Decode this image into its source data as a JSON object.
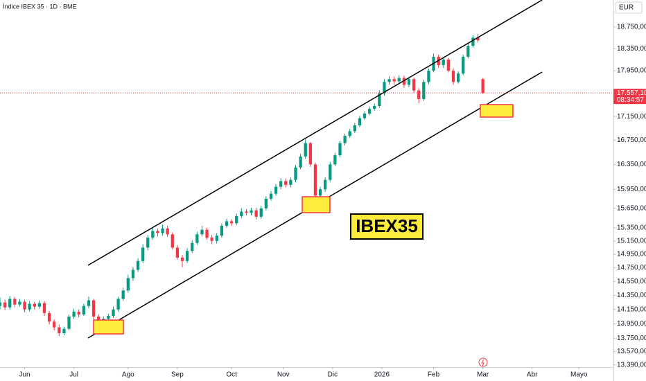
{
  "chart_data": {
    "type": "candlestick",
    "title": "Índice IBEX 35 · 1D · BME",
    "currency": "EUR",
    "annotation": "IBEX35",
    "log_scale": true,
    "grid": false,
    "up_color": "#089981",
    "down_color": "#f23645",
    "x": [
      0,
      2,
      4,
      6,
      8,
      10,
      12,
      14,
      16,
      18,
      20,
      22,
      24,
      26,
      28,
      30,
      32,
      34,
      36,
      38,
      40,
      42,
      44,
      46,
      48,
      50,
      52,
      54,
      56,
      58,
      60,
      62,
      64,
      66,
      68,
      70,
      72,
      74,
      76,
      78,
      80,
      82,
      84,
      86,
      88,
      90,
      92,
      94,
      96,
      98,
      100,
      102,
      104,
      106,
      108,
      110,
      112,
      114,
      116,
      118,
      120,
      122,
      124,
      126,
      128,
      130,
      132,
      134,
      136,
      138,
      140,
      142,
      144,
      146,
      148,
      150,
      152,
      154,
      156,
      158,
      160,
      162,
      164,
      166,
      168,
      170,
      172,
      174,
      176,
      178,
      180,
      182,
      184,
      186,
      188,
      190,
      192,
      194,
      196
    ],
    "open": [
      14200,
      14250,
      14180,
      14300,
      14220,
      14260,
      14150,
      14230,
      14190,
      14240,
      14100,
      13980,
      13900,
      13820,
      13880,
      14050,
      14120,
      14080,
      14200,
      14280,
      14050,
      13960,
      14020,
      14060,
      14150,
      14300,
      14420,
      14600,
      14720,
      14850,
      15050,
      15200,
      15300,
      15270,
      15340,
      15250,
      15050,
      14900,
      14850,
      15000,
      15120,
      15250,
      15320,
      15200,
      15150,
      15230,
      15380,
      15450,
      15420,
      15530,
      15600,
      15580,
      15620,
      15520,
      15650,
      15800,
      15880,
      15990,
      16080,
      16020,
      16100,
      16300,
      16480,
      16700,
      16350,
      15850,
      15950,
      16100,
      16350,
      16500,
      16700,
      16820,
      16900,
      17000,
      17120,
      17200,
      17280,
      17330,
      17550,
      17750,
      17800,
      17760,
      17820,
      17700,
      17800,
      17600,
      17450,
      17750,
      17950,
      18200,
      18050,
      18150,
      17950,
      17750,
      17900,
      18200,
      18400,
      18550,
      17800
    ],
    "high": [
      14320,
      14290,
      14340,
      14330,
      14300,
      14290,
      14270,
      14260,
      14280,
      14270,
      14130,
      14010,
      13940,
      13910,
      14080,
      14160,
      14150,
      14230,
      14330,
      14300,
      14080,
      14050,
      14090,
      14190,
      14330,
      14460,
      14650,
      14760,
      14890,
      15100,
      15240,
      15360,
      15340,
      15400,
      15380,
      15280,
      15090,
      14940,
      15040,
      15160,
      15290,
      15380,
      15350,
      15240,
      15270,
      15420,
      15490,
      15480,
      15570,
      15650,
      15640,
      15660,
      15660,
      15690,
      15840,
      15920,
      16030,
      16130,
      16120,
      16140,
      16340,
      16520,
      16760,
      16720,
      16380,
      15990,
      16140,
      16390,
      16540,
      16740,
      16860,
      16940,
      17040,
      17160,
      17240,
      17320,
      17370,
      17600,
      17800,
      17850,
      17850,
      17870,
      17860,
      17840,
      17830,
      17640,
      17790,
      17990,
      18260,
      18240,
      18190,
      18180,
      17990,
      17940,
      18240,
      18440,
      18600,
      18620,
      17820
    ],
    "low": [
      14150,
      14140,
      14150,
      14180,
      14190,
      14110,
      14120,
      14150,
      14160,
      14060,
      13940,
      13860,
      13780,
      13790,
      13860,
      14020,
      14040,
      14060,
      14170,
      14010,
      13920,
      13940,
      13990,
      14030,
      14120,
      14270,
      14390,
      14560,
      14690,
      14820,
      15010,
      15170,
      15220,
      15230,
      15210,
      15020,
      14870,
      14760,
      14820,
      14970,
      15090,
      15220,
      15170,
      15100,
      15110,
      15200,
      15350,
      15380,
      15390,
      15500,
      15540,
      15540,
      15480,
      15490,
      15620,
      15770,
      15850,
      15950,
      15980,
      15980,
      16060,
      16270,
      16440,
      16310,
      15780,
      15780,
      15910,
      16070,
      16320,
      16470,
      16660,
      16790,
      16870,
      16970,
      17090,
      17170,
      17250,
      17300,
      17510,
      17700,
      17700,
      17720,
      17650,
      17660,
      17560,
      17380,
      17420,
      17710,
      17920,
      18000,
      18000,
      17920,
      17700,
      17720,
      17870,
      18170,
      18370,
      18460,
      17540
    ],
    "close": [
      14250,
      14180,
      14300,
      14220,
      14260,
      14150,
      14230,
      14190,
      14240,
      14100,
      13980,
      13900,
      13820,
      13880,
      14050,
      14120,
      14080,
      14200,
      14280,
      14050,
      13960,
      14020,
      14060,
      14150,
      14300,
      14420,
      14600,
      14720,
      14850,
      15050,
      15200,
      15300,
      15270,
      15340,
      15250,
      15050,
      14900,
      14850,
      15000,
      15120,
      15250,
      15320,
      15200,
      15150,
      15230,
      15380,
      15450,
      15420,
      15530,
      15600,
      15580,
      15620,
      15520,
      15650,
      15800,
      15880,
      15990,
      16080,
      16020,
      16100,
      16300,
      16480,
      16700,
      16350,
      15850,
      15950,
      16100,
      16350,
      16500,
      16700,
      16820,
      16900,
      17000,
      17120,
      17200,
      17280,
      17330,
      17550,
      17750,
      17800,
      17760,
      17820,
      17700,
      17800,
      17600,
      17450,
      17750,
      17950,
      18200,
      18050,
      18150,
      17950,
      17750,
      17900,
      18200,
      18400,
      18550,
      18500,
      17557.1
    ],
    "xlim": [
      0,
      249
    ],
    "xticks": [
      {
        "value": 10,
        "label": "Jun"
      },
      {
        "value": 30,
        "label": "Jul"
      },
      {
        "value": 52,
        "label": "Ago"
      },
      {
        "value": 72,
        "label": "Sep"
      },
      {
        "value": 94,
        "label": "Oct"
      },
      {
        "value": 115,
        "label": "Nov"
      },
      {
        "value": 135,
        "label": "Dic"
      },
      {
        "value": 155,
        "label": "2026"
      },
      {
        "value": 176,
        "label": "Feb"
      },
      {
        "value": 196,
        "label": "Mar"
      },
      {
        "value": 216,
        "label": "Abr"
      },
      {
        "value": 235,
        "label": "Mayo"
      }
    ],
    "ylim": [
      13360,
      19260
    ],
    "yticks": [
      {
        "value": 18750,
        "label": "18.750,00"
      },
      {
        "value": 18350,
        "label": "18.350,00"
      },
      {
        "value": 17950,
        "label": "17.950,00"
      },
      {
        "value": 17150,
        "label": "17.150,00"
      },
      {
        "value": 16750,
        "label": "16.750,00"
      },
      {
        "value": 16350,
        "label": "16.350,00"
      },
      {
        "value": 15950,
        "label": "15.950,00"
      },
      {
        "value": 15650,
        "label": "15.650,00"
      },
      {
        "value": 15350,
        "label": "15.350,00"
      },
      {
        "value": 15150,
        "label": "15.150,00"
      },
      {
        "value": 14950,
        "label": "14.950,00"
      },
      {
        "value": 14750,
        "label": "14.750,00"
      },
      {
        "value": 14550,
        "label": "14.550,00"
      },
      {
        "value": 14350,
        "label": "14.350,00"
      },
      {
        "value": 14150,
        "label": "14.150,00"
      },
      {
        "value": 13950,
        "label": "13.950,00"
      },
      {
        "value": 13750,
        "label": "13.750,00"
      },
      {
        "value": 13570,
        "label": "13.570,00"
      },
      {
        "value": 13390,
        "label": "13.390,00"
      }
    ],
    "last_price": {
      "value": 17557.1,
      "label": "17.557,10"
    },
    "countdown": "08:34:57"
  }
}
